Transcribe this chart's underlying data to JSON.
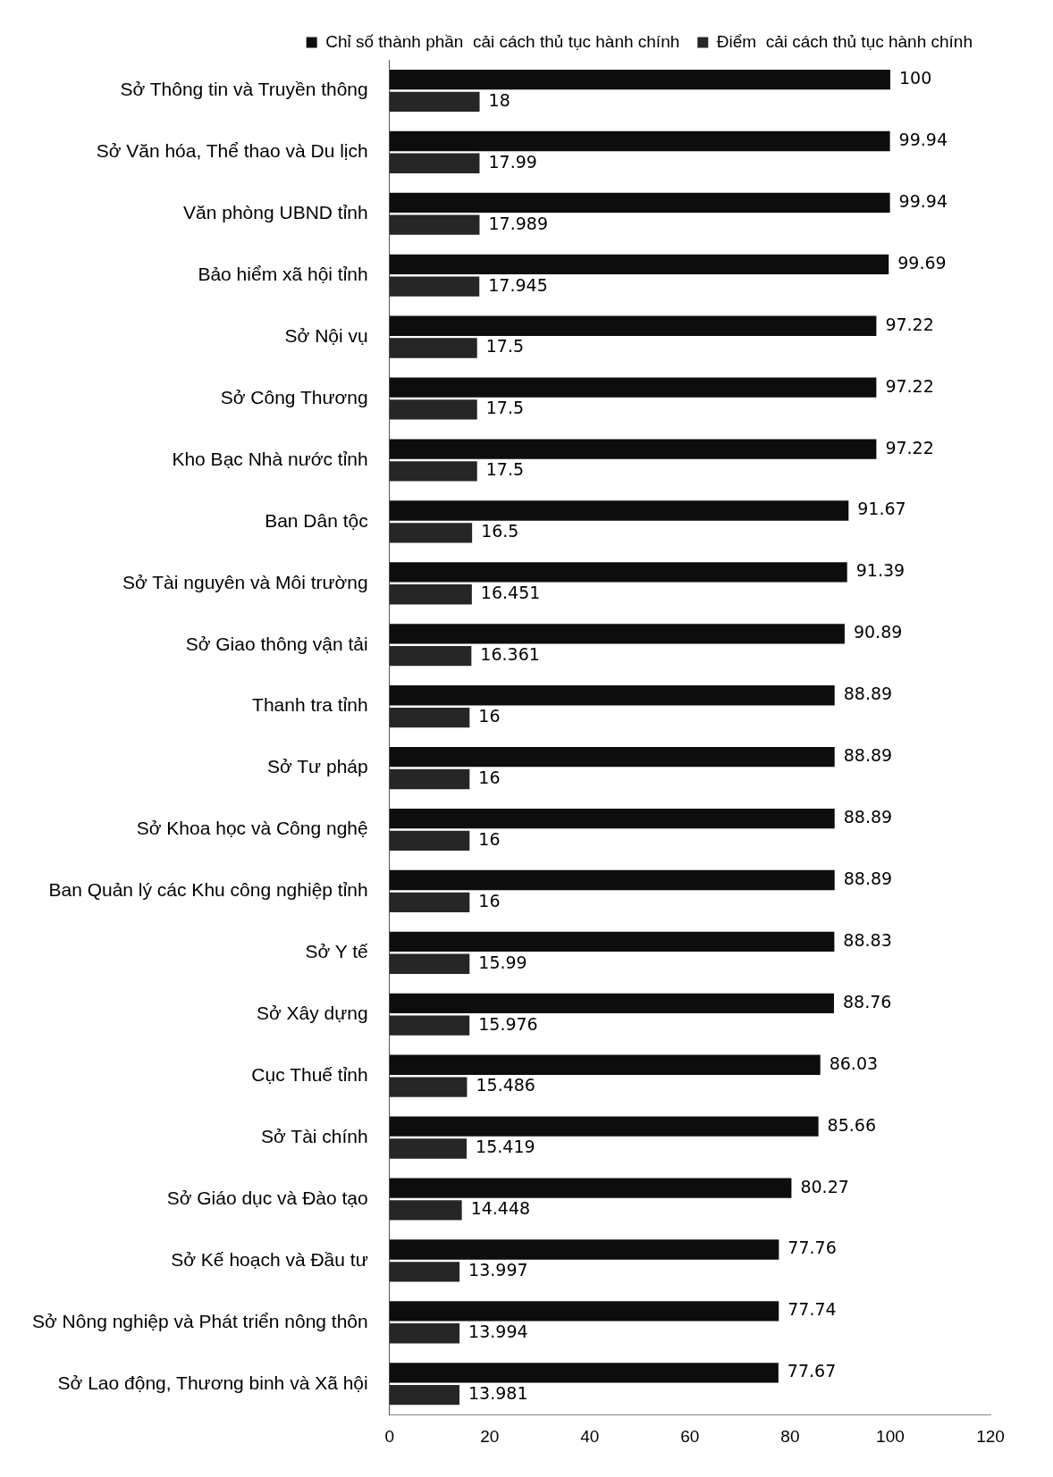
{
  "chart_data": {
    "type": "bar",
    "orientation": "horizontal",
    "categories": [
      "Sở Thông tin và Truyền thông",
      "Sở Văn hóa, Thể thao và Du lịch",
      "Văn phòng UBND tỉnh",
      "Bảo hiểm xã hội tỉnh",
      "Sở Nội vụ",
      "Sở Công Thương",
      "Kho Bạc Nhà nước tỉnh",
      "Ban Dân tộc",
      "Sở Tài nguyên và Môi trường",
      "Sở Giao thông vận tải",
      "Thanh tra tỉnh",
      "Sở Tư pháp",
      "Sở Khoa học và Công nghệ",
      "Ban Quản lý các Khu công nghiệp tỉnh",
      "Sở Y tế",
      "Sở Xây dựng",
      "Cục Thuế tỉnh",
      "Sở Tài chính",
      "Sở Giáo dục và Đào tạo",
      "Sở Kế hoạch và Đầu tư",
      "Sở Nông nghiệp và Phát triển nông thôn",
      "Sở Lao động, Thương binh và Xã hội"
    ],
    "series": [
      {
        "name": "Chỉ số thành phần  cải cách thủ tục hành chính",
        "color": "#0d0d0d",
        "values": [
          100,
          99.94,
          99.94,
          99.69,
          97.22,
          97.22,
          97.22,
          91.67,
          91.39,
          90.89,
          88.89,
          88.89,
          88.89,
          88.89,
          88.83,
          88.76,
          86.03,
          85.66,
          80.27,
          77.76,
          77.74,
          77.67
        ]
      },
      {
        "name": "Điểm  cải cách thủ tục hành chính",
        "color": "#262626",
        "values": [
          18,
          17.99,
          17.989,
          17.945,
          17.5,
          17.5,
          17.5,
          16.5,
          16.451,
          16.361,
          16,
          16,
          16,
          16,
          15.99,
          15.976,
          15.486,
          15.419,
          14.448,
          13.997,
          13.994,
          13.981
        ]
      }
    ],
    "xlim": [
      0,
      120
    ],
    "xticks": [
      0,
      20,
      40,
      60,
      80,
      100,
      120
    ],
    "grid": false,
    "legend": "top",
    "data_labels": true
  }
}
